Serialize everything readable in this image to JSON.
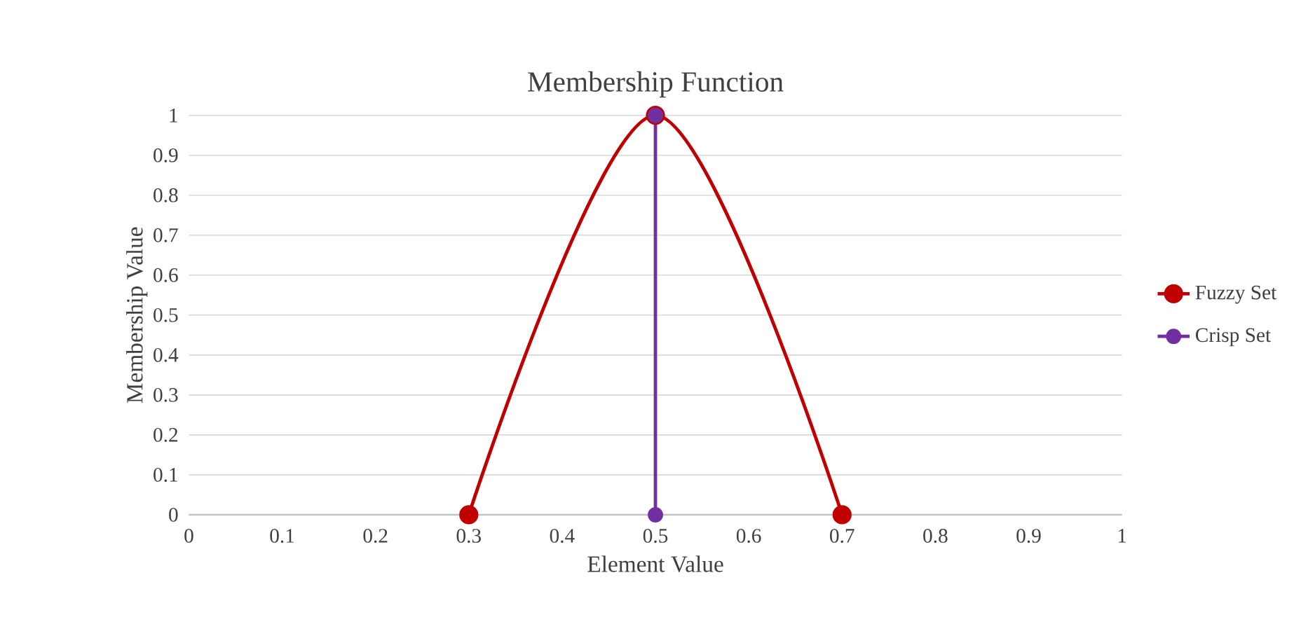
{
  "chart_data": {
    "type": "line",
    "title": "Membership Function",
    "xlabel": "Element Value",
    "ylabel": "Membership Value",
    "xlim": [
      0,
      1
    ],
    "ylim": [
      0,
      1
    ],
    "xticks": [
      0,
      0.1,
      0.2,
      0.3,
      0.4,
      0.5,
      0.6,
      0.7,
      0.8,
      0.9,
      1
    ],
    "yticks": [
      0,
      0.1,
      0.2,
      0.3,
      0.4,
      0.5,
      0.6,
      0.7,
      0.8,
      0.9,
      1
    ],
    "grid": "y",
    "legend": "right",
    "marker": "circle",
    "line_style": "solid",
    "series": [
      {
        "name": "Fuzzy Set",
        "color": "#c00000",
        "x": [
          0.3,
          0.5,
          0.7
        ],
        "values": [
          0,
          1,
          0
        ]
      },
      {
        "name": "Crisp Set",
        "color": "#7030a0",
        "x": [
          0.5,
          0.5
        ],
        "values": [
          0,
          1
        ]
      }
    ]
  }
}
